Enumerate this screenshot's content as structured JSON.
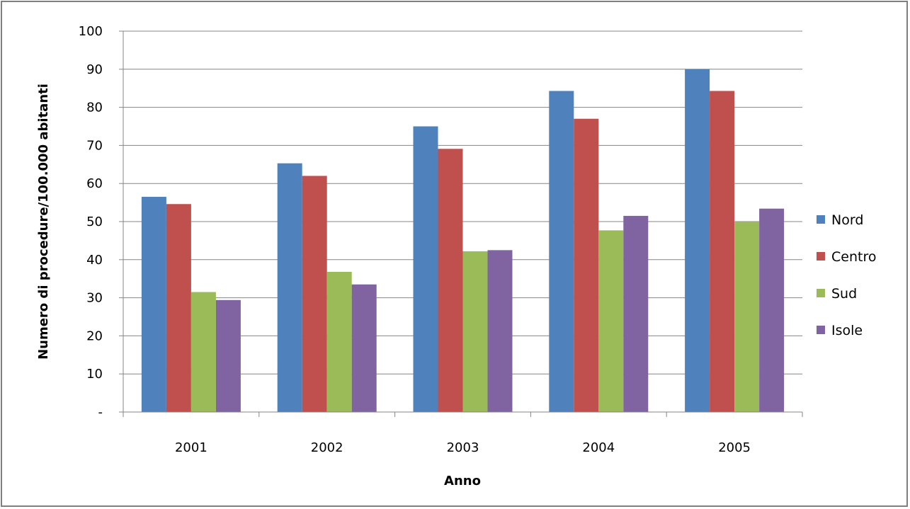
{
  "chart_data": {
    "type": "bar",
    "title": "",
    "xlabel": "Anno",
    "ylabel": "Numero di procedure/100.000 abitanti",
    "categories": [
      "2001",
      "2002",
      "2003",
      "2004",
      "2005"
    ],
    "ylim": [
      0,
      100
    ],
    "yticks": [
      0,
      10,
      20,
      30,
      40,
      50,
      60,
      70,
      80,
      90,
      100
    ],
    "ytick_labels": [
      "-",
      "10",
      "20",
      "30",
      "40",
      "50",
      "60",
      "70",
      "80",
      "90",
      "100"
    ],
    "grid": true,
    "legend_position": "right",
    "series": [
      {
        "name": "Nord",
        "color": "#4F81BD",
        "values": [
          56.5,
          65.3,
          75.0,
          84.3,
          90.0
        ]
      },
      {
        "name": "Centro",
        "color": "#C0504D",
        "values": [
          54.6,
          62.0,
          69.1,
          77.0,
          84.3
        ]
      },
      {
        "name": "Sud",
        "color": "#9BBB59",
        "values": [
          31.5,
          36.8,
          42.2,
          47.7,
          50.0
        ]
      },
      {
        "name": "Isole",
        "color": "#8064A2",
        "values": [
          29.4,
          33.5,
          42.5,
          51.5,
          53.4
        ]
      }
    ]
  }
}
